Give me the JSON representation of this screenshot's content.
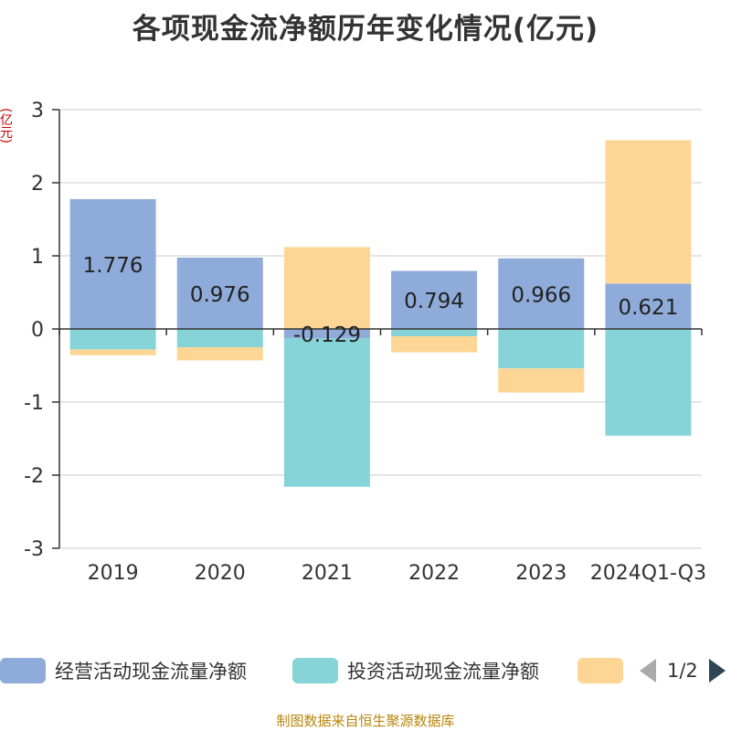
{
  "title": "各项现金流净额历年变化情况(亿元)",
  "y_unit": "(亿元)",
  "source": "制图数据来自恒生聚源数据库",
  "pager": {
    "text": "1/2"
  },
  "chart_data": {
    "type": "bar",
    "stacked": true,
    "categories": [
      "2019",
      "2020",
      "2021",
      "2022",
      "2023",
      "2024Q1-Q3"
    ],
    "ylim": [
      -3,
      3
    ],
    "yticks": [
      3,
      2,
      1,
      0,
      -1,
      -2,
      -3
    ],
    "grid": true,
    "legend_position": "bottom",
    "series": [
      {
        "name": "经营活动现金流量净额",
        "color": "#8fabd9",
        "values": [
          1.776,
          0.976,
          -0.129,
          0.794,
          0.966,
          0.621
        ],
        "labels": [
          "1.776",
          "0.976",
          "-0.129",
          "0.794",
          "0.966",
          "0.621"
        ]
      },
      {
        "name": "投资活动现金流量净额",
        "color": "#86d4d8",
        "values": [
          -0.28,
          -0.25,
          -2.03,
          -0.1,
          -0.54,
          -1.46
        ]
      },
      {
        "name": "",
        "color": "#fdd695",
        "values": [
          -0.08,
          -0.18,
          1.12,
          -0.22,
          -0.33,
          1.96
        ]
      }
    ]
  }
}
